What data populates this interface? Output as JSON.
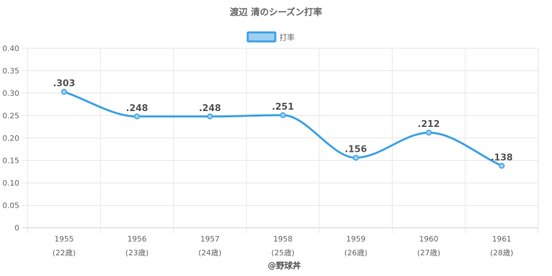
{
  "chart_data": {
    "type": "line",
    "title": "渡辺 清のシーズン打率",
    "categories": [
      "1955",
      "1956",
      "1957",
      "1958",
      "1959",
      "1960",
      "1961"
    ],
    "sub_labels": [
      "(22歳)",
      "(23歳)",
      "(24歳)",
      "(25歳)",
      "(26歳)",
      "(27歳)",
      "(28歳)"
    ],
    "series": [
      {
        "name": "打率",
        "values": [
          0.303,
          0.248,
          0.248,
          0.251,
          0.156,
          0.212,
          0.138
        ],
        "data_labels": [
          ".303",
          ".248",
          ".248",
          ".251",
          ".156",
          ".212",
          ".138"
        ]
      }
    ],
    "ylim": [
      0,
      0.4
    ],
    "y_ticks": [
      "0",
      "0.05",
      "0.10",
      "0.15",
      "0.20",
      "0.25",
      "0.30",
      "0.35",
      "0.40"
    ],
    "grid": true,
    "legend_position": "top",
    "colors": {
      "line": "#3ea2e5",
      "legend_fill": "#9fd0f2",
      "grid": "#e6e6e6",
      "text": "#666666"
    },
    "credit": "@野球丼"
  }
}
